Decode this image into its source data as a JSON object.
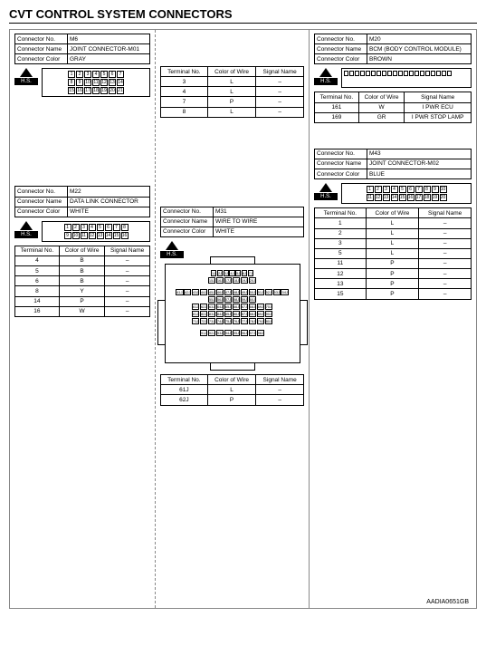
{
  "page_title": "CVT CONTROL SYSTEM CONNECTORS",
  "ref_id": "AADIA0651GB",
  "labels": {
    "connector_no": "Connector No.",
    "connector_name": "Connector Name",
    "connector_color": "Connector Color",
    "terminal_no": "Terminal No.",
    "color_of_wire": "Color of Wire",
    "signal_name": "Signal Name",
    "hs": "H.S."
  },
  "col1": {
    "m6": {
      "no": "M6",
      "name": "JOINT CONNECTOR-M01",
      "color": "GRAY",
      "pins_rows": [
        [
          "1",
          "2",
          "3",
          "4",
          "5",
          "6",
          "7"
        ],
        [
          "8",
          "9",
          "10",
          "11",
          "12",
          "13",
          "14"
        ],
        [
          "15",
          "16",
          "17",
          "18",
          "19",
          "20",
          "21"
        ]
      ]
    },
    "m6_sig_centered": {
      "rows": [
        {
          "t": "3",
          "c": "L",
          "s": "–"
        },
        {
          "t": "4",
          "c": "L",
          "s": "–"
        },
        {
          "t": "7",
          "c": "P",
          "s": "–"
        },
        {
          "t": "8",
          "c": "L",
          "s": "–"
        }
      ]
    },
    "m22": {
      "no": "M22",
      "name": "DATA LINK CONNECTOR",
      "color": "WHITE",
      "pins_rows": [
        [
          "1",
          "2",
          "3",
          "4",
          "5",
          "6",
          "7",
          "8"
        ],
        [
          "9",
          "10",
          "11",
          "12",
          "13",
          "14",
          "15",
          "16"
        ]
      ]
    },
    "m22_sig": {
      "rows": [
        {
          "t": "4",
          "c": "B",
          "s": "–"
        },
        {
          "t": "5",
          "c": "B",
          "s": "–"
        },
        {
          "t": "6",
          "c": "B",
          "s": "–"
        },
        {
          "t": "8",
          "c": "Y",
          "s": "–"
        },
        {
          "t": "14",
          "c": "P",
          "s": "–"
        },
        {
          "t": "16",
          "c": "W",
          "s": "–"
        }
      ]
    }
  },
  "col2": {
    "m31": {
      "no": "M31",
      "name": "WIRE TO WIRE",
      "color": "WHITE"
    },
    "m31_sig": {
      "rows": [
        {
          "t": "61J",
          "c": "L",
          "s": "–"
        },
        {
          "t": "62J",
          "c": "P",
          "s": "–"
        }
      ]
    }
  },
  "col3": {
    "m20": {
      "no": "M20",
      "name": "BCM (BODY CONTROL MODULE)",
      "color": "BROWN"
    },
    "m20_sig": {
      "rows": [
        {
          "t": "161",
          "c": "W",
          "s": "I PWR ECU"
        },
        {
          "t": "169",
          "c": "GR",
          "s": "I PWR STOP LAMP"
        }
      ]
    },
    "m43": {
      "no": "M43",
      "name": "JOINT CONNECTOR-M02",
      "color": "BLUE",
      "pins_rows": [
        [
          "1",
          "2",
          "3",
          "4",
          "5",
          "6",
          "7",
          "8",
          "9",
          "10"
        ],
        [
          "11",
          "12",
          "13",
          "14",
          "15",
          "16",
          "17",
          "18",
          "19",
          "20"
        ]
      ]
    },
    "m43_sig": {
      "rows": [
        {
          "t": "1",
          "c": "L",
          "s": "–"
        },
        {
          "t": "2",
          "c": "L",
          "s": "–"
        },
        {
          "t": "3",
          "c": "L",
          "s": "–"
        },
        {
          "t": "5",
          "c": "L",
          "s": "–"
        },
        {
          "t": "11",
          "c": "P",
          "s": "–"
        },
        {
          "t": "12",
          "c": "P",
          "s": "–"
        },
        {
          "t": "13",
          "c": "P",
          "s": "–"
        },
        {
          "t": "15",
          "c": "P",
          "s": "–"
        }
      ]
    }
  }
}
